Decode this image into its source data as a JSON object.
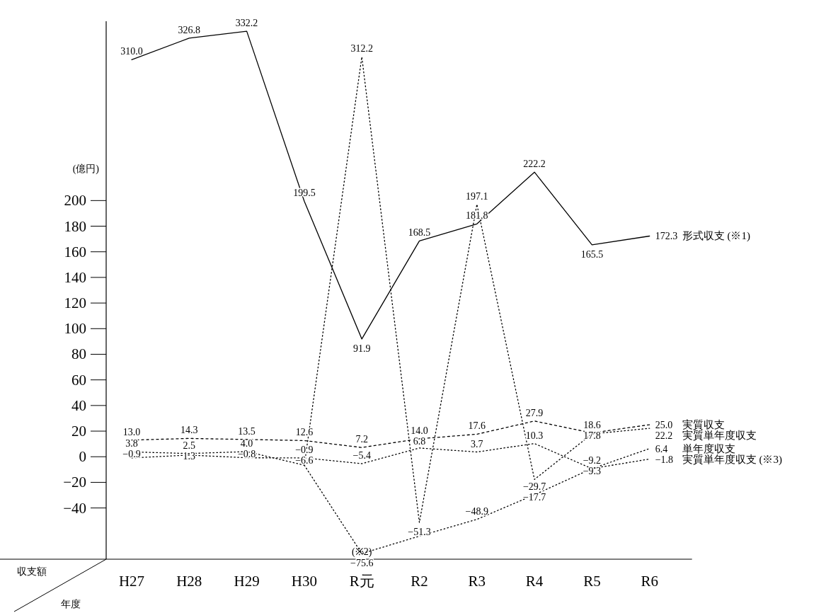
{
  "chart_data": {
    "type": "line",
    "ylabel": "(億円)",
    "xlabel": "年度",
    "categories": [
      "H27",
      "H28",
      "H29",
      "H30",
      "R元",
      "R2",
      "R3",
      "R4",
      "R5",
      "R6"
    ],
    "ylim": [
      -80,
      340
    ],
    "yticks": [
      {
        "value": -40,
        "label": "−40"
      },
      {
        "value": -20,
        "label": "−20"
      },
      0,
      20,
      40,
      60,
      80,
      100,
      120,
      140,
      160,
      180,
      200
    ],
    "series": [
      {
        "name": "形式収支 (※1)",
        "color": "#000000",
        "line_style": "solid",
        "values": [
          310.0,
          326.8,
          332.2,
          199.5,
          91.9,
          168.5,
          181.8,
          222.2,
          165.5,
          172.3
        ],
        "value_labels": [
          "310.0",
          "326.8",
          "332.2",
          "199.5",
          "91.9",
          "168.5",
          "181.8",
          "222.2",
          "165.5",
          "172.3"
        ]
      },
      {
        "name": "実質収支",
        "color": "#000000",
        "line_style": "dashed",
        "values": [
          13.0,
          14.3,
          13.5,
          12.6,
          7.2,
          14.0,
          17.6,
          27.9,
          18.6,
          25.0
        ],
        "value_labels": [
          "13.0",
          "14.3",
          "13.5",
          "12.6",
          "7.2",
          "14.0",
          "17.6",
          "27.9",
          "18.6",
          "25.0"
        ]
      },
      {
        "name": "実質単年度収支",
        "color": "#000000",
        "line_style": "dotted",
        "values": [
          3.8,
          2.5,
          4.0,
          -6.6,
          312.2,
          -51.3,
          197.1,
          -17.7,
          17.8,
          22.2
        ],
        "value_labels": [
          "3.8",
          "2.5",
          "4.0",
          "−6.6",
          "312.2",
          "−51.3",
          "197.1",
          "−17.7",
          "17.8",
          "22.2"
        ]
      },
      {
        "name": "単年度収支",
        "color": "#000000",
        "line_style": "dotted",
        "values": [
          -0.9,
          1.3,
          -0.8,
          -0.9,
          -5.4,
          6.8,
          3.7,
          10.3,
          -9.3,
          6.4
        ],
        "value_labels": [
          "−0.9",
          "1.3",
          "−0.8",
          "−0.9",
          "−5.4",
          "6.8",
          "3.7",
          "10.3",
          "−9.3",
          "6.4"
        ]
      },
      {
        "name": "実質単年度収支 (※3)",
        "color": "#000000",
        "line_style": "dotted",
        "values": [
          null,
          null,
          null,
          -6.6,
          -75.6,
          -62,
          -48.9,
          -29.7,
          -9.2,
          -1.8
        ],
        "value_labels": [
          null,
          null,
          null,
          null,
          "−75.6",
          null,
          "−48.9",
          "−29.7",
          "−9.2",
          "−1.8"
        ]
      }
    ],
    "annotations": [
      "収支額",
      {
        "text": "(※2)",
        "x": "R元",
        "y": -75.6
      }
    ]
  }
}
